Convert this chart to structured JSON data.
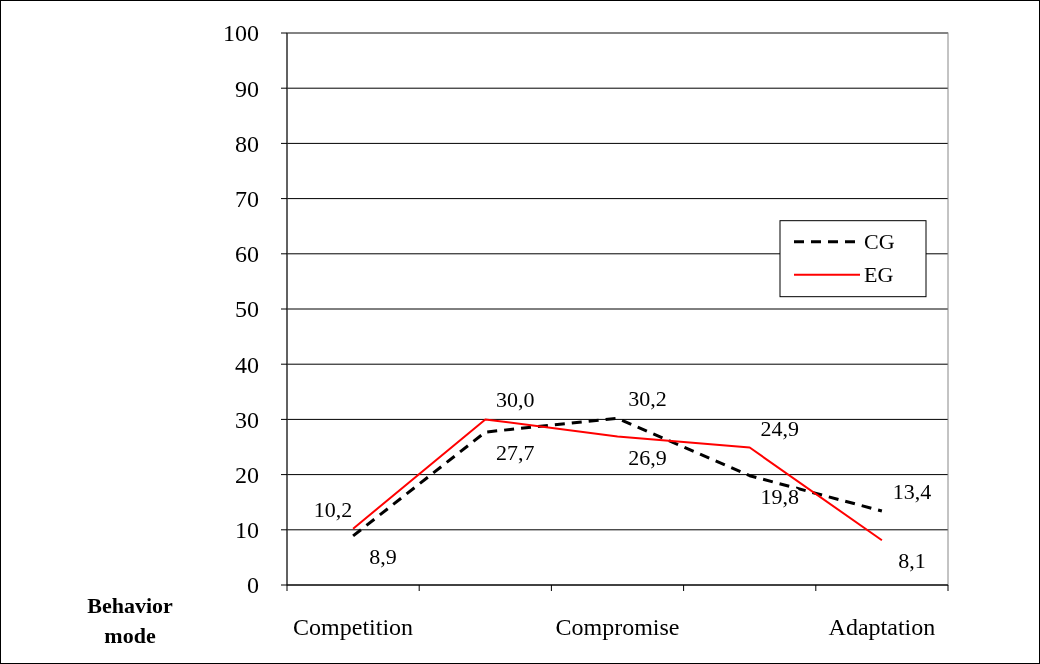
{
  "chart_data": {
    "type": "line",
    "xlabel": "Behavior mode",
    "categories": [
      "Competition",
      null,
      "Compromise",
      null,
      "Adaptation"
    ],
    "series": [
      {
        "name": "CG",
        "color": "#000000",
        "line_style": "dashed",
        "values": [
          8.9,
          27.7,
          30.2,
          19.8,
          13.4
        ],
        "value_labels": [
          "8,9",
          "27,7",
          "30,2",
          "19,8",
          "13,4"
        ]
      },
      {
        "name": "EG",
        "color": "#ff0000",
        "line_style": "solid",
        "values": [
          10.2,
          30.0,
          26.9,
          24.9,
          8.1
        ],
        "value_labels": [
          "10,2",
          "30,0",
          "26,9",
          "24,9",
          "8,1"
        ]
      }
    ],
    "ylim": [
      0,
      100
    ],
    "yticks": [
      0,
      10,
      20,
      30,
      40,
      50,
      60,
      70,
      80,
      90,
      100
    ],
    "grid": "y",
    "legend": "right",
    "marker": "none"
  }
}
